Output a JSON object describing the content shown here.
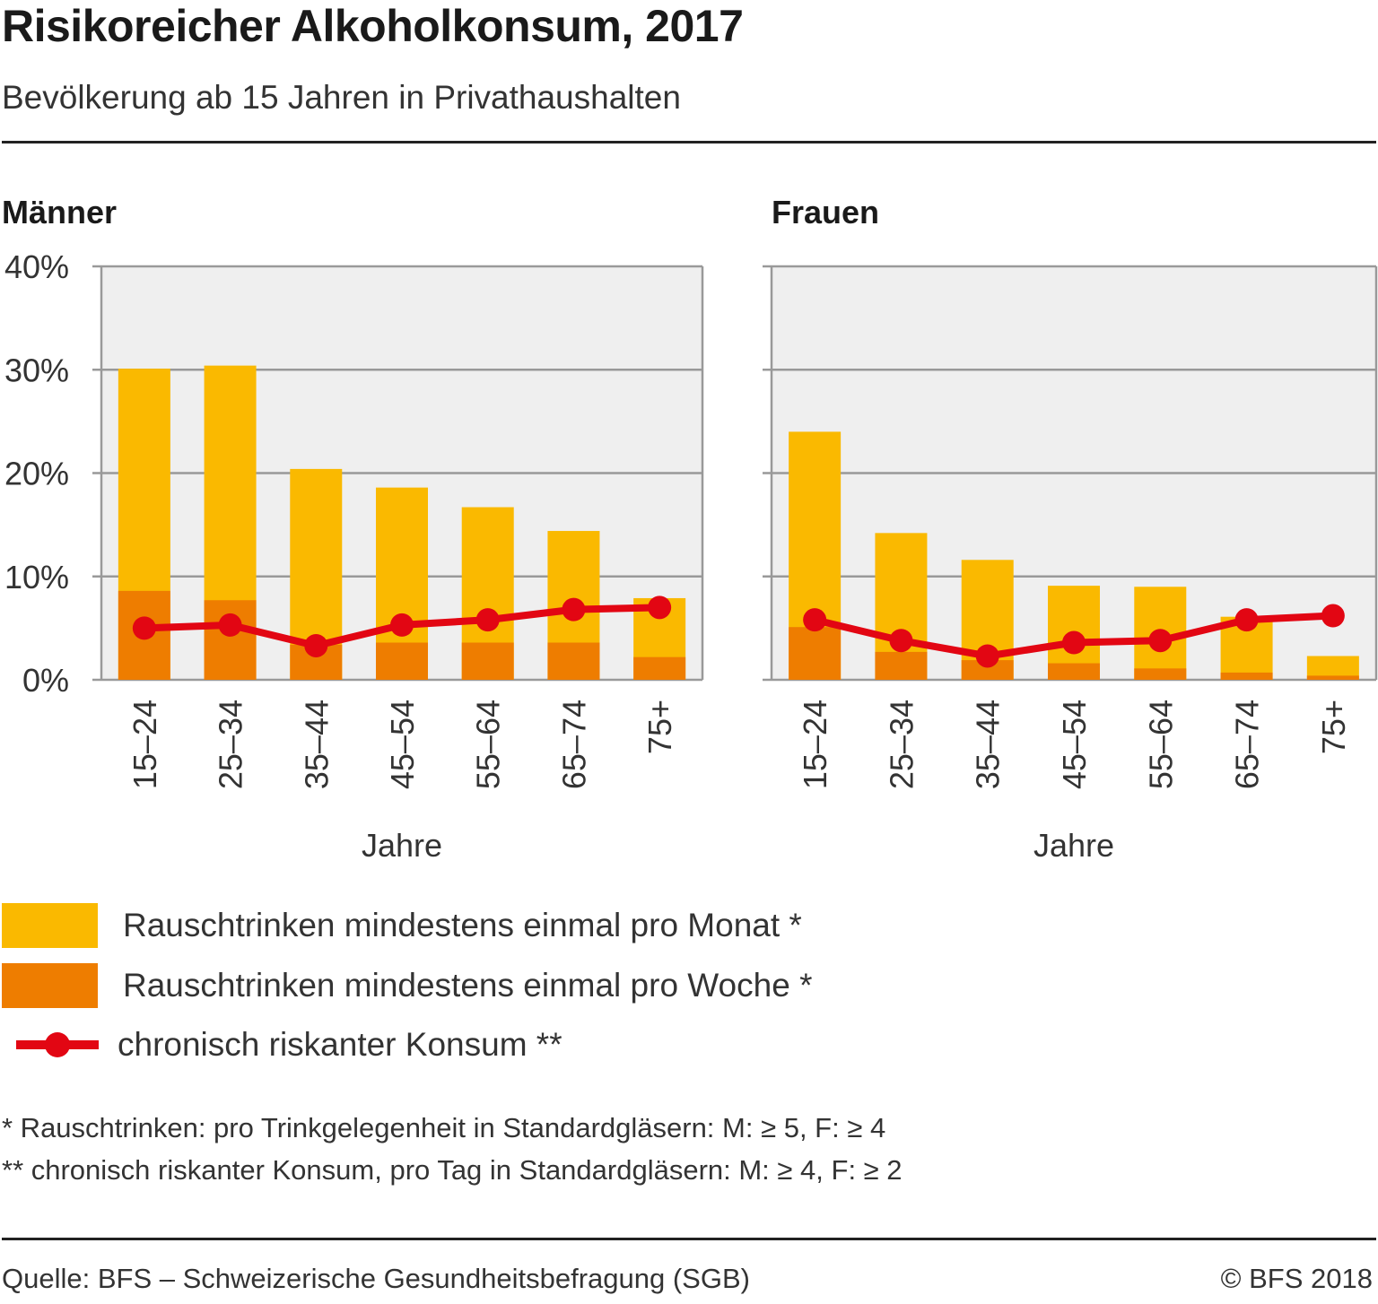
{
  "header": {
    "title": "Risikoreicher Alkoholkonsum, 2017",
    "subtitle": "Bevölkerung ab 15 Jahren in Privathaushalten"
  },
  "colors": {
    "monthly": "#FAB900",
    "weekly": "#EE7D00",
    "chronic": "#E20613",
    "plot_bg": "#EFEFEF",
    "grid": "#999999"
  },
  "chart_data": [
    {
      "type": "bar",
      "panel": "Männer",
      "categories": [
        "15–24",
        "25–34",
        "35–44",
        "45–54",
        "55–64",
        "65–74",
        "75+"
      ],
      "xlabel": "Jahre",
      "ylabel": "",
      "ylim": [
        0,
        40
      ],
      "yticks": [
        "0%",
        "10%",
        "20%",
        "30%",
        "40%"
      ],
      "grid": true,
      "series": [
        {
          "name": "Rauschtrinken mindestens einmal pro Monat *",
          "kind": "bar",
          "values": [
            30.1,
            30.4,
            20.4,
            18.6,
            16.7,
            14.4,
            7.9
          ]
        },
        {
          "name": "Rauschtrinken mindestens einmal pro Woche *",
          "kind": "bar",
          "values": [
            8.6,
            7.7,
            3.4,
            3.6,
            3.6,
            3.6,
            2.2
          ]
        },
        {
          "name": "chronisch riskanter Konsum **",
          "kind": "line",
          "values": [
            5.0,
            5.3,
            3.3,
            5.3,
            5.8,
            6.8,
            7.0
          ]
        }
      ]
    },
    {
      "type": "bar",
      "panel": "Frauen",
      "categories": [
        "15–24",
        "25–34",
        "35–44",
        "45–54",
        "55–64",
        "65–74",
        "75+"
      ],
      "xlabel": "Jahre",
      "ylabel": "",
      "ylim": [
        0,
        40
      ],
      "grid": true,
      "series": [
        {
          "name": "Rauschtrinken mindestens einmal pro Monat *",
          "kind": "bar",
          "values": [
            24.0,
            14.2,
            11.6,
            9.1,
            9.0,
            6.1,
            2.3
          ]
        },
        {
          "name": "Rauschtrinken mindestens einmal pro Woche *",
          "kind": "bar",
          "values": [
            5.1,
            2.7,
            1.9,
            1.6,
            1.1,
            0.7,
            0.4
          ]
        },
        {
          "name": "chronisch riskanter Konsum **",
          "kind": "line",
          "values": [
            5.8,
            3.8,
            2.3,
            3.6,
            3.8,
            5.8,
            6.2
          ]
        }
      ]
    }
  ],
  "legend": {
    "items": [
      "Rauschtrinken mindestens einmal pro Monat *",
      "Rauschtrinken mindestens einmal pro Woche *",
      "chronisch riskanter Konsum **"
    ]
  },
  "notes": {
    "note1": "* Rauschtrinken: pro Trinkgelegenheit in Standardgläsern: M: ≥ 5, F: ≥ 4",
    "note2": "** chronisch riskanter Konsum, pro Tag in Standardgläsern: M: ≥ 4, F: ≥ 2"
  },
  "footer": {
    "source": "Quelle: BFS – Schweizerische Gesundheitsbefragung (SGB)",
    "copyright": "© BFS 2018"
  }
}
